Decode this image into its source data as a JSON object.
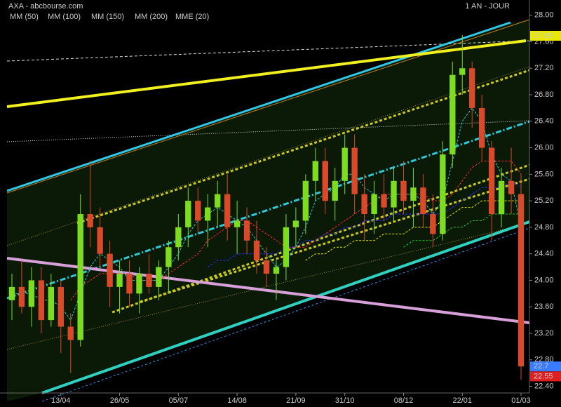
{
  "chart_data": {
    "type": "candlestick",
    "title": "AXA - abcbourse.com",
    "subtitle": "1 AN - JOUR",
    "categories": [
      null,
      null,
      null,
      null,
      null,
      "13/04",
      null,
      null,
      null,
      null,
      null,
      "26/05",
      null,
      null,
      null,
      null,
      null,
      "05/07",
      null,
      null,
      null,
      null,
      null,
      "14/08",
      null,
      null,
      null,
      null,
      null,
      "21/09",
      null,
      null,
      null,
      null,
      "31/10",
      null,
      null,
      null,
      null,
      null,
      "08/12",
      null,
      null,
      null,
      null,
      null,
      "22/01",
      null,
      null,
      null,
      null,
      null,
      "01/03"
    ],
    "open": [
      23.7,
      23.9,
      23.6,
      24.0,
      23.4,
      23.9,
      23.3,
      23.1,
      25.0,
      24.8,
      24.4,
      23.9,
      24.1,
      23.8,
      24.1,
      23.9,
      24.2,
      24.5,
      24.8,
      25.2,
      24.9,
      25.1,
      25.3,
      24.8,
      24.9,
      24.6,
      24.3,
      24.1,
      24.2,
      24.8,
      24.9,
      25.5,
      25.8,
      25.2,
      25.5,
      26.0,
      25.3,
      25.0,
      25.3,
      25.1,
      25.5,
      25.2,
      25.4,
      25.0,
      24.7,
      25.9,
      27.1,
      27.2,
      26.6,
      26.0,
      25.0,
      25.5,
      25.3
    ],
    "high": [
      24.1,
      24.3,
      24.2,
      24.2,
      24.1,
      24.0,
      23.5,
      25.3,
      25.8,
      25.1,
      24.6,
      24.3,
      24.3,
      24.2,
      24.4,
      24.3,
      24.6,
      25.0,
      25.4,
      25.4,
      25.3,
      25.5,
      25.6,
      25.2,
      25.1,
      24.9,
      24.5,
      24.3,
      25.0,
      25.1,
      25.6,
      26.0,
      26.0,
      25.7,
      26.2,
      26.2,
      25.6,
      25.5,
      25.6,
      25.7,
      25.8,
      25.7,
      25.6,
      25.3,
      26.1,
      27.3,
      27.7,
      27.3,
      26.8,
      26.1,
      25.7,
      26.0,
      25.6
    ],
    "low": [
      23.4,
      23.5,
      23.3,
      23.2,
      23.3,
      22.9,
      22.6,
      23.0,
      24.5,
      24.2,
      23.6,
      23.5,
      23.6,
      23.5,
      23.8,
      23.7,
      23.8,
      24.3,
      24.5,
      24.7,
      24.5,
      24.8,
      24.6,
      24.4,
      24.4,
      24.1,
      23.9,
      23.7,
      24.0,
      24.5,
      24.7,
      25.2,
      25.0,
      24.9,
      25.3,
      25.0,
      24.6,
      24.7,
      24.9,
      24.9,
      25.0,
      24.8,
      24.8,
      24.5,
      24.6,
      25.7,
      26.8,
      26.3,
      25.8,
      24.6,
      24.8,
      25.0,
      22.5
    ],
    "close": [
      23.9,
      23.6,
      24.0,
      23.4,
      23.9,
      23.3,
      23.1,
      25.0,
      24.8,
      24.4,
      23.9,
      24.1,
      23.8,
      24.1,
      23.9,
      24.2,
      24.5,
      24.8,
      25.2,
      24.9,
      25.1,
      25.3,
      24.8,
      24.9,
      24.6,
      24.3,
      24.1,
      24.2,
      24.8,
      24.9,
      25.5,
      25.8,
      25.2,
      25.5,
      26.0,
      25.3,
      25.0,
      25.3,
      25.1,
      25.5,
      25.2,
      25.4,
      25.0,
      24.7,
      25.9,
      27.1,
      27.2,
      26.6,
      26.0,
      25.0,
      25.5,
      25.3,
      22.7
    ],
    "up_color": "#7ddc1f",
    "down_color": "#d84a2a",
    "series": [
      {
        "name": "MM (50)",
        "color": "#ff2a2a",
        "values": [
          null,
          null,
          null,
          null,
          null,
          null,
          23.7,
          23.9,
          24.0,
          24.1,
          24.1,
          24.1,
          24.1,
          24.0,
          24.0,
          24.0,
          24.1,
          24.2,
          24.3,
          24.4,
          24.6,
          24.7,
          24.8,
          24.9,
          24.9,
          24.8,
          24.7,
          24.6,
          24.5,
          24.5,
          24.5,
          24.6,
          24.7,
          24.8,
          24.9,
          25.0,
          25.1,
          25.2,
          25.3,
          25.3,
          25.3,
          25.3,
          25.3,
          25.2,
          25.2,
          25.3,
          25.5,
          25.7,
          25.8,
          25.8,
          25.8,
          25.8,
          25.6
        ]
      },
      {
        "name": "MM (100)",
        "color": "#2a2aff",
        "values": [
          null,
          null,
          null,
          null,
          null,
          null,
          null,
          null,
          null,
          null,
          null,
          null,
          null,
          null,
          null,
          null,
          null,
          null,
          null,
          null,
          24.2,
          24.3,
          24.3,
          24.4,
          24.4,
          24.4,
          24.4,
          24.4,
          24.5,
          24.5,
          24.6,
          24.6,
          24.7,
          24.7,
          24.8,
          24.8,
          24.9,
          24.9,
          24.9,
          25.0,
          25.0,
          25.0,
          25.0,
          25.0,
          25.0,
          25.1,
          25.2,
          25.3,
          25.4,
          25.4,
          25.4,
          25.5,
          25.4
        ]
      },
      {
        "name": "MM (150)",
        "color": "#e8e800",
        "values": [
          null,
          null,
          null,
          null,
          null,
          null,
          null,
          null,
          null,
          null,
          null,
          null,
          null,
          null,
          null,
          null,
          null,
          null,
          null,
          null,
          null,
          null,
          null,
          null,
          null,
          null,
          null,
          null,
          null,
          null,
          24.3,
          24.4,
          24.4,
          24.5,
          24.5,
          24.6,
          24.6,
          24.6,
          24.7,
          24.7,
          24.7,
          24.8,
          24.8,
          24.8,
          24.9,
          25.0,
          25.1,
          25.1,
          25.2,
          25.2,
          25.2,
          25.2,
          25.2
        ]
      },
      {
        "name": "MM (200)",
        "color": "#22c022",
        "values": [
          null,
          null,
          null,
          null,
          null,
          null,
          null,
          null,
          null,
          null,
          null,
          null,
          null,
          null,
          null,
          null,
          null,
          null,
          null,
          null,
          null,
          null,
          null,
          null,
          null,
          null,
          null,
          null,
          null,
          null,
          null,
          null,
          null,
          null,
          null,
          null,
          null,
          null,
          null,
          null,
          24.5,
          24.6,
          24.6,
          24.6,
          24.7,
          24.8,
          24.8,
          24.9,
          24.9,
          25.0,
          25.0,
          25.0,
          25.0
        ]
      },
      {
        "name": "MME (20)",
        "color": "#22d0d0",
        "values": [
          23.8,
          23.8,
          23.8,
          23.7,
          23.7,
          23.6,
          23.4,
          23.8,
          24.2,
          24.4,
          24.3,
          24.2,
          24.0,
          24.0,
          24.0,
          24.0,
          24.2,
          24.4,
          24.7,
          24.9,
          25.0,
          25.1,
          25.0,
          24.9,
          24.8,
          24.6,
          24.4,
          24.2,
          24.3,
          24.5,
          24.8,
          25.2,
          25.3,
          25.4,
          25.6,
          25.6,
          25.4,
          25.3,
          25.2,
          25.3,
          25.3,
          25.3,
          25.2,
          25.0,
          25.2,
          25.8,
          26.4,
          26.6,
          26.4,
          25.9,
          25.6,
          25.5,
          24.8
        ]
      }
    ],
    "price_markers": [
      {
        "value": 27.69,
        "color": "#e8e800"
      },
      {
        "value": 22.7,
        "color": "#3a7cff"
      },
      {
        "value": 22.55,
        "color": "#e02020"
      }
    ],
    "ylim": [
      22.3,
      28.23
    ],
    "yticks": [
      {
        "value": 22.4,
        "label": "22.40"
      },
      {
        "value": 22.8,
        "label": "22.80"
      },
      {
        "value": 23.2,
        "label": "23.20"
      },
      {
        "value": 23.6,
        "label": "23.60"
      },
      {
        "value": 24.0,
        "label": "24.00"
      },
      {
        "value": 24.4,
        "label": "24.40"
      },
      {
        "value": 24.8,
        "label": "24.80"
      },
      {
        "value": 25.2,
        "label": "25.20"
      },
      {
        "value": 25.6,
        "label": "25.60"
      },
      {
        "value": 26.0,
        "label": "26.00"
      },
      {
        "value": 26.4,
        "label": "26.40"
      },
      {
        "value": 26.8,
        "label": "26.80"
      },
      {
        "value": 27.2,
        "label": "27.20"
      },
      {
        "value": 27.6,
        "label": "27.60"
      },
      {
        "value": 28.0,
        "label": "28.00"
      }
    ]
  }
}
